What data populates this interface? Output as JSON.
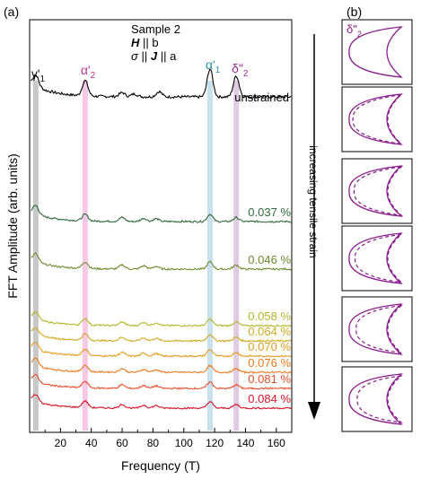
{
  "panel_a_label": "(a)",
  "panel_b_label": "(b)",
  "info": {
    "sample": "Sample 2",
    "field_sym": "H",
    "field_rel": "|| b",
    "current_sym": "σ",
    "current_rel": "|| ",
    "current_vec": "J",
    "current_tail": "|| a"
  },
  "arrow_label": "increasing tensile strain",
  "peak_labels": [
    {
      "id": "gamma1",
      "text": "γ'",
      "sub": "1",
      "freq": 4,
      "color": "#9a9a9a",
      "text_color": "#111111"
    },
    {
      "id": "alpha2",
      "text": "α'",
      "sub": "2",
      "freq": 36,
      "color": "#f19ccd",
      "text_color": "#c0369a"
    },
    {
      "id": "alpha1",
      "text": "α'",
      "sub": "1",
      "freq": 117,
      "color": "#9cc9e0",
      "text_color": "#2a8fa8"
    },
    {
      "id": "delta2",
      "text": "δ\"",
      "sub": "2",
      "freq": 134,
      "color": "#c9a0cc",
      "text_color": "#9b2b94"
    }
  ],
  "inset_label": {
    "text": "δ\"",
    "sub": "2",
    "color": "#8b1a8e"
  },
  "chart_data": {
    "type": "line",
    "xlabel": "Frequency (T)",
    "ylabel": "FFT Amplitude (arb. units)",
    "xlim": [
      0,
      170
    ],
    "xticks": [
      20,
      40,
      60,
      80,
      100,
      120,
      140,
      160
    ],
    "series": [
      {
        "name": "unstrained",
        "color": "#000000",
        "peaks": [
          [
            4,
            1.0
          ],
          [
            36,
            1.3
          ],
          [
            60,
            0.35
          ],
          [
            68,
            0.25
          ],
          [
            84,
            0.45
          ],
          [
            117,
            2.4
          ],
          [
            134,
            1.8
          ]
        ]
      },
      {
        "name": "0.037 %",
        "color": "#2f6b3a",
        "peaks": [
          [
            4,
            1.1
          ],
          [
            36,
            0.8
          ],
          [
            60,
            0.5
          ],
          [
            74,
            0.4
          ],
          [
            82,
            0.35
          ],
          [
            117,
            0.9
          ],
          [
            134,
            0.5
          ]
        ]
      },
      {
        "name": "0.046 %",
        "color": "#6e8a2e",
        "peaks": [
          [
            4,
            1.0
          ],
          [
            36,
            0.8
          ],
          [
            60,
            0.5
          ],
          [
            74,
            0.4
          ],
          [
            82,
            0.35
          ],
          [
            117,
            0.9
          ],
          [
            134,
            0.5
          ]
        ]
      },
      {
        "name": "0.058 %",
        "color": "#b5b82a",
        "peaks": [
          [
            4,
            1.0
          ],
          [
            36,
            0.9
          ],
          [
            60,
            0.5
          ],
          [
            74,
            0.45
          ],
          [
            82,
            0.4
          ],
          [
            117,
            0.9
          ],
          [
            134,
            0.5
          ]
        ]
      },
      {
        "name": "0.064 %",
        "color": "#d1a91f",
        "peaks": [
          [
            4,
            1.0
          ],
          [
            36,
            0.9
          ],
          [
            60,
            0.5
          ],
          [
            74,
            0.4
          ],
          [
            82,
            0.35
          ],
          [
            117,
            0.9
          ],
          [
            134,
            0.5
          ]
        ]
      },
      {
        "name": "0.070 %",
        "color": "#e69a1c",
        "peaks": [
          [
            4,
            1.0
          ],
          [
            36,
            0.9
          ],
          [
            60,
            0.5
          ],
          [
            74,
            0.4
          ],
          [
            82,
            0.35
          ],
          [
            117,
            0.9
          ],
          [
            134,
            0.5
          ]
        ]
      },
      {
        "name": "0.076 %",
        "color": "#ee7a20",
        "peaks": [
          [
            4,
            1.0
          ],
          [
            36,
            0.9
          ],
          [
            60,
            0.5
          ],
          [
            74,
            0.4
          ],
          [
            82,
            0.35
          ],
          [
            117,
            0.9
          ],
          [
            134,
            0.5
          ]
        ]
      },
      {
        "name": "0.081 %",
        "color": "#ea4c2a",
        "peaks": [
          [
            4,
            1.0
          ],
          [
            36,
            0.9
          ],
          [
            60,
            0.5
          ],
          [
            74,
            0.4
          ],
          [
            82,
            0.35
          ],
          [
            117,
            0.9
          ],
          [
            134,
            0.5
          ]
        ]
      },
      {
        "name": "0.084 %",
        "color": "#d9152a",
        "peaks": [
          [
            4,
            1.0
          ],
          [
            36,
            0.9
          ],
          [
            60,
            0.5
          ],
          [
            74,
            0.4
          ],
          [
            82,
            0.35
          ],
          [
            117,
            0.9
          ],
          [
            134,
            0.5
          ]
        ]
      }
    ]
  }
}
